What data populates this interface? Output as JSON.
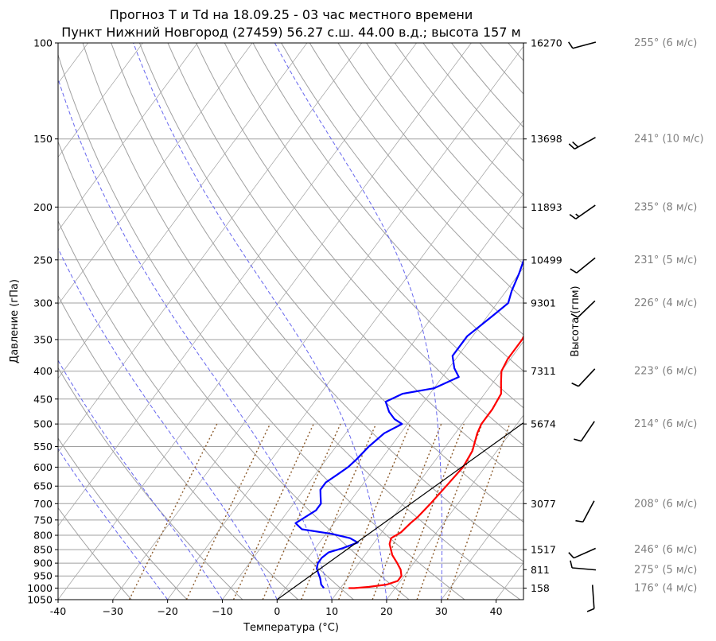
{
  "chart_data": {
    "type": "line",
    "title_line1": "Прогноз T и Td на 18.09.25 - 03 час местного времени",
    "title_line2": "Пункт Нижний Новгород (27459) 56.27 с.ш. 44.00 в.д.; высота 157 м",
    "xlabel": "Температура (°C)",
    "ylabel": "Давление (гПа)",
    "ylabel_right": "Высота (гпм)",
    "xlim": [
      -40,
      45
    ],
    "ylim": [
      1050,
      100
    ],
    "yscale": "log",
    "skew": true,
    "x_ticks": [
      "-40",
      "−30",
      "−20",
      "−10",
      "0",
      "10",
      "20",
      "30",
      "40"
    ],
    "x_tick_values": [
      -40,
      -30,
      -20,
      -10,
      0,
      10,
      20,
      30,
      40
    ],
    "y_ticks": [
      100,
      150,
      200,
      250,
      300,
      350,
      400,
      450,
      500,
      550,
      600,
      650,
      700,
      750,
      800,
      850,
      900,
      950,
      1000,
      1050
    ],
    "height_ticks": [
      {
        "p": 100,
        "label": "16270"
      },
      {
        "p": 150,
        "label": "13698"
      },
      {
        "p": 200,
        "label": "11893"
      },
      {
        "p": 250,
        "label": "10499"
      },
      {
        "p": 300,
        "label": "9301"
      },
      {
        "p": 400,
        "label": "7311"
      },
      {
        "p": 500,
        "label": "5674"
      },
      {
        "p": 700,
        "label": "3077"
      },
      {
        "p": 850,
        "label": "1517"
      },
      {
        "p": 925,
        "label": "811"
      },
      {
        "p": 1000,
        "label": "158"
      }
    ],
    "grid": true,
    "series": [
      {
        "color": "#ff0000",
        "points": [
          [
            11.5,
            1000
          ],
          [
            12.5,
            1000
          ],
          [
            15,
            995
          ],
          [
            18,
            985
          ],
          [
            19.5,
            970
          ],
          [
            19.5,
            950
          ],
          [
            18.5,
            925
          ],
          [
            17,
            900
          ],
          [
            15,
            870
          ],
          [
            13,
            830
          ],
          [
            12.5,
            810
          ],
          [
            13.5,
            790
          ],
          [
            14,
            760
          ],
          [
            14.5,
            740
          ],
          [
            15,
            700
          ],
          [
            15.5,
            650
          ],
          [
            16,
            600
          ],
          [
            15.5,
            560
          ],
          [
            14,
            520
          ],
          [
            13.5,
            500
          ],
          [
            13.5,
            470
          ],
          [
            13,
            440
          ],
          [
            11.5,
            420
          ],
          [
            10,
            400
          ],
          [
            9.5,
            380
          ],
          [
            9.5,
            350
          ],
          [
            8.5,
            320
          ],
          [
            7,
            300
          ],
          [
            6,
            285
          ],
          [
            5,
            270
          ],
          [
            4,
            250
          ],
          [
            3,
            230
          ],
          [
            2.5,
            215
          ],
          [
            3,
            205
          ],
          [
            5,
            196
          ],
          [
            8.5,
            185
          ],
          [
            12.5,
            175
          ],
          [
            16,
            165
          ],
          [
            20,
            157
          ],
          [
            22.5,
            150
          ],
          [
            25.5,
            140
          ],
          [
            28.5,
            130
          ],
          [
            31,
            122
          ],
          [
            34,
            115
          ],
          [
            37,
            108
          ],
          [
            40,
            102
          ],
          [
            41,
            100
          ]
        ]
      },
      {
        "color": "#0000ff",
        "points": [
          [
            7,
            1000
          ],
          [
            6,
            985
          ],
          [
            5,
            960
          ],
          [
            4,
            940
          ],
          [
            3,
            920
          ],
          [
            2.5,
            900
          ],
          [
            2.5,
            880
          ],
          [
            3,
            860
          ],
          [
            5,
            845
          ],
          [
            7,
            825
          ],
          [
            5,
            810
          ],
          [
            1,
            795
          ],
          [
            -5,
            780
          ],
          [
            -7,
            760
          ],
          [
            -6,
            740
          ],
          [
            -5,
            720
          ],
          [
            -5,
            700
          ],
          [
            -6,
            680
          ],
          [
            -7,
            660
          ],
          [
            -7,
            640
          ],
          [
            -6,
            620
          ],
          [
            -5,
            600
          ],
          [
            -4.5,
            580
          ],
          [
            -4,
            550
          ],
          [
            -3,
            520
          ],
          [
            -1,
            500
          ],
          [
            -3,
            490
          ],
          [
            -5,
            475
          ],
          [
            -7,
            455
          ],
          [
            -5,
            440
          ],
          [
            0,
            430
          ],
          [
            3,
            410
          ],
          [
            1,
            395
          ],
          [
            -1,
            375
          ],
          [
            -1,
            360
          ],
          [
            -1,
            345
          ],
          [
            0,
            330
          ],
          [
            1,
            315
          ],
          [
            2,
            300
          ],
          [
            1,
            285
          ],
          [
            0,
            265
          ],
          [
            -1,
            250
          ],
          [
            -1.5,
            235
          ],
          [
            -1.5,
            222
          ],
          [
            -1,
            213
          ],
          [
            0,
            205
          ],
          [
            1,
            198
          ],
          [
            1,
            190
          ],
          [
            0.5,
            180
          ],
          [
            0,
            172
          ],
          [
            1.5,
            165
          ],
          [
            4,
            158
          ],
          [
            7,
            150
          ],
          [
            9,
            143
          ],
          [
            12,
            133
          ],
          [
            15,
            123
          ],
          [
            18,
            114
          ],
          [
            21,
            106
          ],
          [
            23,
            100
          ]
        ]
      },
      {
        "color": "#000000",
        "points": [
          [
            0,
            1050
          ],
          [
            29.5,
            368
          ]
        ]
      }
    ],
    "winds": [
      {
        "p": 100,
        "dir": 255,
        "spd": 6,
        "label": "255° (6 м/с)"
      },
      {
        "p": 150,
        "dir": 241,
        "spd": 10,
        "label": "241° (10 м/с)"
      },
      {
        "p": 200,
        "dir": 235,
        "spd": 8,
        "label": "235° (8 м/с)"
      },
      {
        "p": 250,
        "dir": 231,
        "spd": 5,
        "label": "231° (5 м/с)"
      },
      {
        "p": 300,
        "dir": 226,
        "spd": 4,
        "label": "226° (4 м/с)"
      },
      {
        "p": 400,
        "dir": 223,
        "spd": 6,
        "label": "223° (6 м/с)"
      },
      {
        "p": 500,
        "dir": 214,
        "spd": 6,
        "label": "214° (6 м/с)"
      },
      {
        "p": 700,
        "dir": 208,
        "spd": 6,
        "label": "208° (6 м/с)"
      },
      {
        "p": 850,
        "dir": 246,
        "spd": 6,
        "label": "246° (6 м/с)"
      },
      {
        "p": 925,
        "dir": 275,
        "spd": 5,
        "label": "275° (5 м/с)"
      },
      {
        "p": 1000,
        "dir": 176,
        "spd": 4,
        "label": "176° (4 м/с)"
      }
    ],
    "colors": {
      "temperature": "#ff0000",
      "dewpoint": "#0000ff",
      "parcel": "#000000",
      "isobars": "#a0a0a0",
      "dry_adiabats": "#a0a0a0",
      "moist_adiabats": "#6666ee",
      "mixing_ratio": "#8b5a2b",
      "wind_label": "#808080"
    }
  }
}
